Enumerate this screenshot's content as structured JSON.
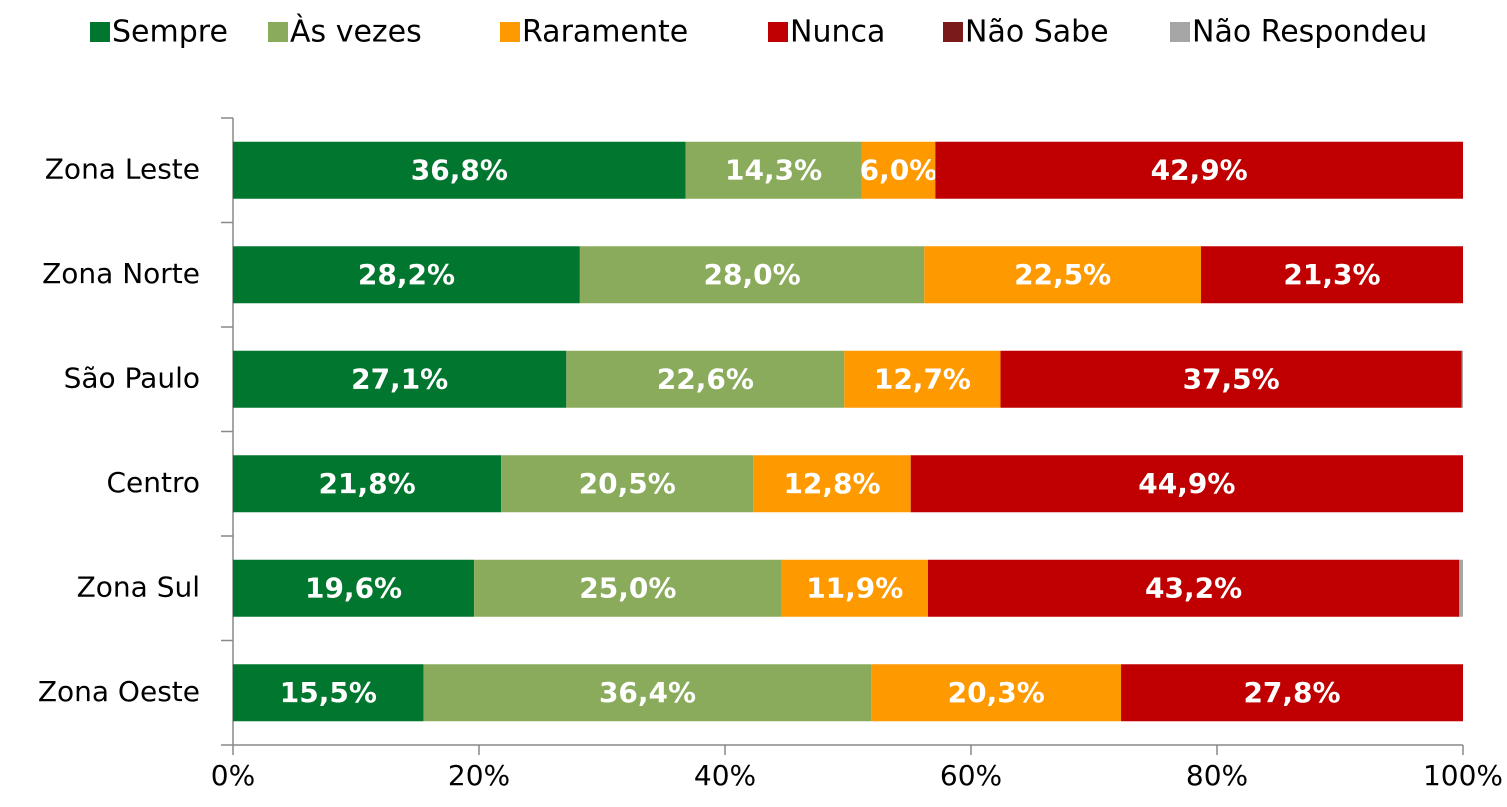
{
  "chart_data": {
    "type": "stacked-barh",
    "categories": [
      "Zona Leste",
      "Zona Norte",
      "São Paulo",
      "Centro",
      "Zona Sul",
      "Zona Oeste"
    ],
    "series": [
      {
        "name": "Sempre",
        "color": "#00762f",
        "values": [
          36.8,
          28.2,
          27.1,
          21.8,
          19.6,
          15.5
        ],
        "value_labels": [
          "36,8%",
          "28,2%",
          "27,1%",
          "21,8%",
          "19,6%",
          "15,5%"
        ]
      },
      {
        "name": "Às vezes",
        "color": "#8aab5c",
        "values": [
          14.3,
          28.0,
          22.6,
          20.5,
          25.0,
          36.4
        ],
        "value_labels": [
          "14,3%",
          "28,0%",
          "22,6%",
          "20,5%",
          "25,0%",
          "36,4%"
        ]
      },
      {
        "name": "Raramente",
        "color": "#ff9900",
        "values": [
          6.0,
          22.5,
          12.7,
          12.8,
          11.9,
          20.3
        ],
        "value_labels": [
          "6,0%",
          "22,5%",
          "12,7%",
          "12,8%",
          "11,9%",
          "20,3%"
        ]
      },
      {
        "name": "Nunca",
        "color": "#c00000",
        "values": [
          42.9,
          21.3,
          37.5,
          44.9,
          43.2,
          27.8
        ],
        "value_labels": [
          "42,9%",
          "21,3%",
          "37,5%",
          "44,9%",
          "43,2%",
          "27,8%"
        ]
      },
      {
        "name": "Não Sabe",
        "color": "#7b1a1a",
        "values": [
          0,
          0,
          0,
          0,
          0,
          0
        ]
      },
      {
        "name": "Não Respondeu",
        "color": "#a6a6a6",
        "values": [
          0,
          0,
          0.1,
          0,
          0.3,
          0
        ]
      }
    ],
    "xlim": [
      0,
      100
    ],
    "xticks": [
      {
        "value": 0,
        "label": "0%"
      },
      {
        "value": 20,
        "label": "20%"
      },
      {
        "value": 40,
        "label": "40%"
      },
      {
        "value": 60,
        "label": "60%"
      },
      {
        "value": 80,
        "label": "80%"
      },
      {
        "value": 100,
        "label": "100%"
      }
    ],
    "legend": "top"
  }
}
